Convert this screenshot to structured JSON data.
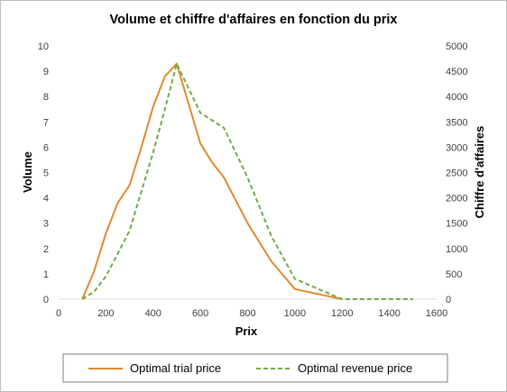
{
  "chart_data": {
    "type": "line",
    "title": "Volume et chiffre d'affaires en fonction du prix",
    "xlabel": "Prix",
    "ylabel": "Volume",
    "y2label": "Chiffre d'affaires",
    "xlim": [
      0,
      1600
    ],
    "ylim": [
      0,
      10
    ],
    "y2lim": [
      0,
      5000
    ],
    "x_ticks": [
      "0",
      "200",
      "400",
      "600",
      "800",
      "1000",
      "1200",
      "1400",
      "1600"
    ],
    "y_ticks": [
      "0",
      "1",
      "2",
      "3",
      "4",
      "5",
      "6",
      "7",
      "8",
      "9",
      "10"
    ],
    "y2_ticks": [
      "0",
      "500",
      "1000",
      "1500",
      "2000",
      "2500",
      "3000",
      "3500",
      "4000",
      "4500",
      "5000"
    ],
    "grid": false,
    "legend_position": "bottom",
    "series": [
      {
        "name": "Optimal trial price",
        "axis": "left",
        "color": "#E08A2E",
        "style": "solid",
        "x": [
          100,
          150,
          200,
          250,
          300,
          350,
          400,
          450,
          500,
          600,
          650,
          700,
          800,
          900,
          1000,
          1200
        ],
        "y": [
          0.0,
          1.1,
          2.6,
          3.8,
          4.5,
          6.0,
          7.6,
          8.8,
          9.3,
          6.15,
          5.4,
          4.8,
          3.0,
          1.5,
          0.4,
          0.0
        ]
      },
      {
        "name": "Optimal revenue price",
        "axis": "right",
        "color": "#70AD47",
        "style": "dashed",
        "x": [
          100,
          150,
          200,
          300,
          400,
          450,
          500,
          600,
          700,
          800,
          900,
          1000,
          1200,
          1500
        ],
        "y": [
          0,
          150,
          450,
          1350,
          2900,
          3750,
          4650,
          3680,
          3380,
          2400,
          1250,
          400,
          0,
          0
        ]
      }
    ]
  }
}
